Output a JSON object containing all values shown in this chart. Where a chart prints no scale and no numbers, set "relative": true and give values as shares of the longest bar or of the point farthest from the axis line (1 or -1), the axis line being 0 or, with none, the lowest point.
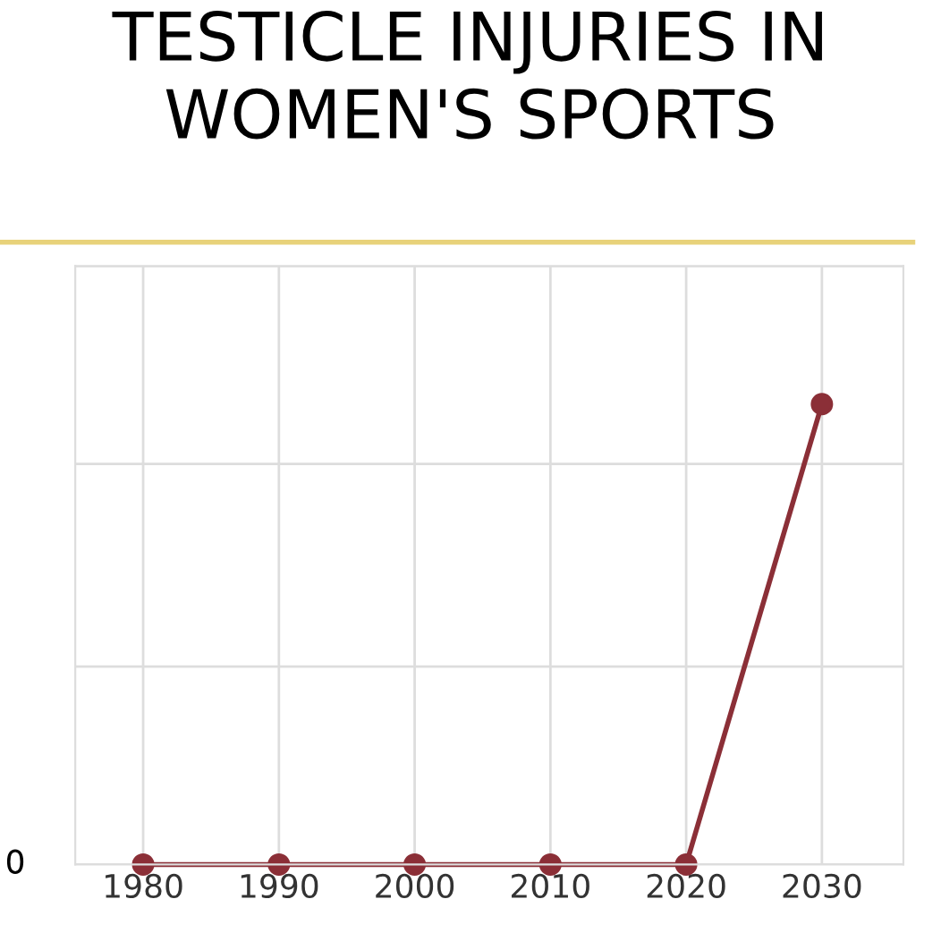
{
  "chart_data": {
    "type": "line",
    "title": "TESTICLE INJURIES IN\nWOMEN'S SPORTS",
    "x": [
      1980,
      1990,
      2000,
      2010,
      2020,
      2030
    ],
    "series": [
      {
        "color": "#8b2f37",
        "values": [
          0,
          0,
          0,
          0,
          0,
          1
        ]
      }
    ],
    "relative": true,
    "xlim": [
      1975,
      2036
    ],
    "xticks": [
      1980,
      1990,
      2000,
      2010,
      2020,
      2030
    ],
    "grid": true,
    "marker": "circle",
    "line_style": "solid",
    "annotations": [
      "0"
    ]
  }
}
